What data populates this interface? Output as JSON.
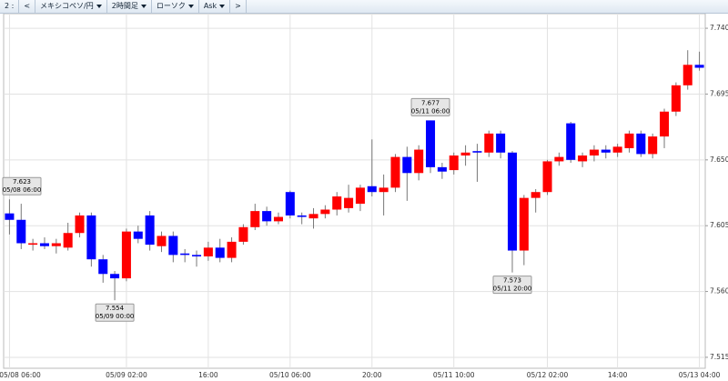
{
  "toolbar": {
    "items": [
      "2 :",
      "<",
      "メキシコペソ/円",
      "2時間足",
      "ローソク",
      "Ask",
      ">"
    ],
    "dropdowns": [
      false,
      false,
      true,
      true,
      true,
      true,
      false
    ]
  },
  "chart_data": {
    "type": "candlestick",
    "categories": [
      "05/08 06:00",
      null,
      null,
      null,
      null,
      null,
      null,
      null,
      null,
      null,
      "05/09 02:00",
      null,
      null,
      null,
      null,
      null,
      null,
      "16:00",
      null,
      null,
      null,
      null,
      null,
      null,
      "05/10 06:00",
      null,
      null,
      null,
      null,
      null,
      null,
      "20:00",
      null,
      null,
      null,
      null,
      null,
      null,
      "05/11 10:00",
      null,
      null,
      null,
      null,
      null,
      null,
      null,
      "05/12 02:00",
      null,
      null,
      null,
      null,
      null,
      "14:00",
      null,
      null,
      null,
      null,
      null,
      null,
      "05/13 04:00"
    ],
    "open": [
      7.6134,
      7.609,
      7.592,
      7.593,
      7.591,
      7.59,
      7.6,
      7.612,
      7.582,
      7.572,
      7.569,
      7.601,
      7.612,
      7.591,
      7.598,
      7.586,
      7.585,
      7.584,
      7.59,
      7.583,
      7.594,
      7.604,
      7.615,
      7.608,
      7.628,
      7.612,
      7.61,
      7.613,
      7.616,
      7.617,
      7.62,
      7.632,
      7.628,
      7.631,
      7.652,
      7.641,
      7.677,
      7.645,
      7.643,
      7.653,
      7.656,
      7.655,
      7.668,
      7.655,
      7.588,
      7.624,
      7.628,
      7.649,
      7.675,
      7.649,
      7.653,
      7.657,
      7.655,
      7.658,
      7.668,
      7.654,
      7.666,
      7.683,
      7.701,
      7.715
    ],
    "high": [
      7.623,
      7.62,
      7.596,
      7.597,
      7.596,
      7.607,
      7.614,
      7.614,
      7.585,
      7.574,
      7.603,
      7.605,
      7.615,
      7.601,
      7.601,
      7.589,
      7.588,
      7.594,
      7.596,
      7.597,
      7.606,
      7.62,
      7.618,
      7.614,
      7.629,
      7.614,
      7.617,
      7.619,
      7.628,
      7.633,
      7.633,
      7.664,
      7.64,
      7.654,
      7.659,
      7.66,
      7.677,
      7.648,
      7.655,
      7.66,
      7.661,
      7.67,
      7.67,
      7.656,
      7.626,
      7.63,
      7.65,
      7.655,
      7.676,
      7.655,
      7.66,
      7.66,
      7.661,
      7.67,
      7.67,
      7.668,
      7.685,
      7.703,
      7.725,
      7.724
    ],
    "low": [
      7.599,
      7.589,
      7.588,
      7.589,
      7.586,
      7.588,
      7.597,
      7.577,
      7.566,
      7.554,
      7.567,
      7.593,
      7.588,
      7.587,
      7.58,
      7.58,
      7.577,
      7.581,
      7.58,
      7.58,
      7.592,
      7.602,
      7.605,
      7.606,
      7.61,
      7.606,
      7.603,
      7.61,
      7.612,
      7.614,
      7.615,
      7.625,
      7.612,
      7.628,
      7.622,
      7.636,
      7.641,
      7.637,
      7.64,
      7.646,
      7.635,
      7.652,
      7.651,
      7.573,
      7.578,
      7.614,
      7.626,
      7.646,
      7.648,
      7.645,
      7.649,
      7.651,
      7.652,
      7.655,
      7.652,
      7.651,
      7.658,
      7.68,
      7.698,
      7.711
    ],
    "close": [
      7.609,
      7.593,
      7.593,
      7.591,
      7.593,
      7.6,
      7.612,
      7.582,
      7.572,
      7.569,
      7.601,
      7.596,
      7.592,
      7.598,
      7.585,
      7.585,
      7.584,
      7.59,
      7.583,
      7.594,
      7.604,
      7.615,
      7.608,
      7.611,
      7.612,
      7.611,
      7.613,
      7.616,
      7.625,
      7.624,
      7.631,
      7.628,
      7.631,
      7.652,
      7.641,
      7.657,
      7.645,
      7.642,
      7.653,
      7.655,
      7.655,
      7.668,
      7.655,
      7.588,
      7.624,
      7.628,
      7.649,
      7.652,
      7.65,
      7.653,
      7.657,
      7.655,
      7.659,
      7.668,
      7.654,
      7.666,
      7.683,
      7.701,
      7.715,
      7.713
    ],
    "up_color": "#ff0000",
    "down_color": "#0000ff",
    "ylim": [
      7.5075,
      7.75
    ],
    "yticks": [
      {
        "value": 7.74,
        "label": "7.740"
      },
      7.695,
      {
        "value": 7.65,
        "label": "7.650"
      },
      7.605,
      {
        "value": 7.56,
        "label": "7.560"
      },
      7.515
    ],
    "grid": true,
    "annotations": [
      {
        "value": 7.623,
        "label": "05/08 06:00"
      },
      {
        "value": 7.554,
        "label": "05/09 00:00"
      },
      {
        "value": 7.677,
        "label": "05/11 06:00"
      },
      {
        "value": 7.573,
        "label": "05/11 20:00"
      }
    ]
  }
}
